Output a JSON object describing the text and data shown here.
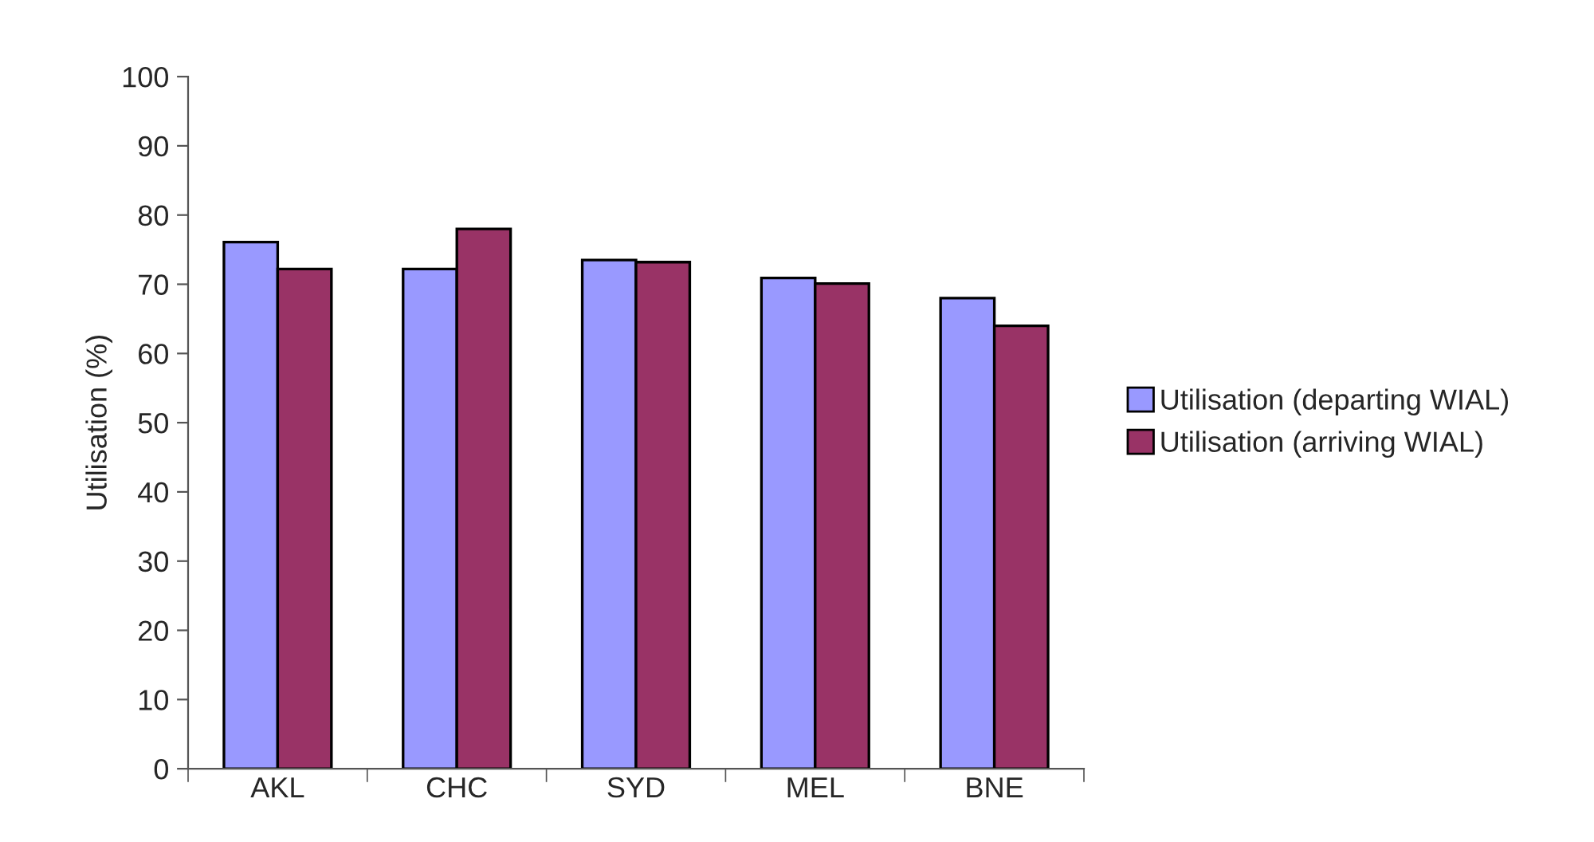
{
  "chart_data": {
    "type": "bar",
    "ylabel": "Utilisation (%)",
    "categories": [
      "AKL",
      "CHC",
      "SYD",
      "MEL",
      "BNE"
    ],
    "series": [
      {
        "name": "Utilisation (departing WIAL)",
        "color": "#9999ff",
        "values": [
          76.1,
          72.2,
          73.5,
          70.9,
          68.0
        ]
      },
      {
        "name": "Utilisation (arriving WIAL)",
        "color": "#993366",
        "values": [
          72.2,
          78.0,
          73.2,
          70.1,
          64.0
        ]
      }
    ],
    "ylim": [
      0,
      100
    ],
    "yticks": [
      0,
      10,
      20,
      30,
      40,
      50,
      60,
      70,
      80,
      90,
      100
    ],
    "grid": false,
    "legend": "right"
  }
}
